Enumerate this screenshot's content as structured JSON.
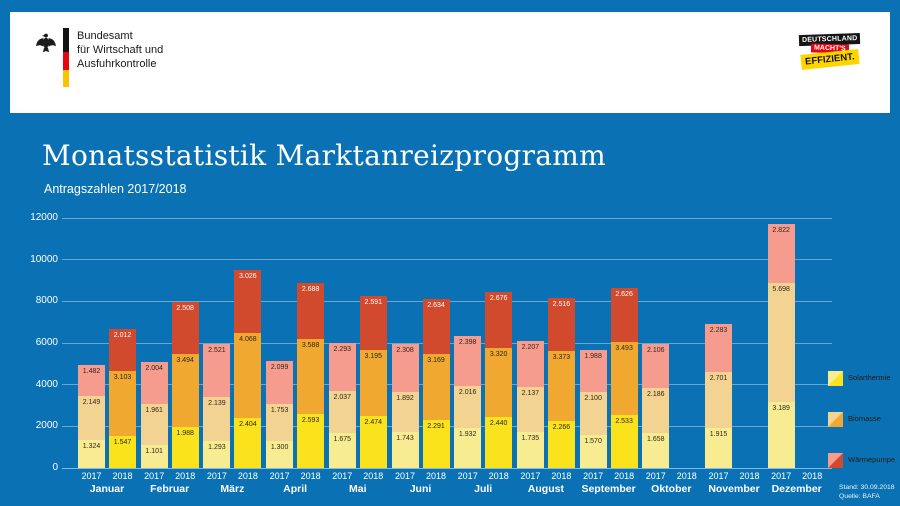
{
  "colors": {
    "background": "#0a72b4",
    "header_background": "#ffffff",
    "flag_black": "#141414",
    "flag_red": "#e30613",
    "flag_gold": "#f6c500",
    "campaign_red": "#e30613",
    "campaign_yellow": "#ffd500"
  },
  "header": {
    "agency": {
      "line1": "Bundesamt",
      "line2": "für Wirtschaft und",
      "line3": "Ausfuhrkontrolle"
    },
    "campaign": {
      "line1": "DEUTSCHLAND",
      "line2": "MACHT'S",
      "line3": "EFFIZIENT."
    }
  },
  "title": "Monatsstatistik Marktanreizprogramm",
  "subtitle": "Antragszahlen 2017/2018",
  "footer": {
    "stand": "Stand: 30.09.2018",
    "quelle": "Quelle: BAFA"
  },
  "chart_data": {
    "type": "bar",
    "stacked": true,
    "title": "Monatsstatistik Marktanreizprogramm",
    "subtitle": "Antragszahlen 2017/2018",
    "grid": true,
    "legend_position": "right",
    "ylim": [
      0,
      12000
    ],
    "yticks": [
      0,
      2000,
      4000,
      6000,
      8000,
      10000,
      12000
    ],
    "series": [
      {
        "key": "solarthermie",
        "name": "Solarthermie",
        "color_2017": "#f7ec92",
        "color_2018": "#fae21d"
      },
      {
        "key": "biomasse",
        "name": "Biomasse",
        "color_2017": "#f3d392",
        "color_2018": "#f0a830"
      },
      {
        "key": "waermepumpe",
        "name": "Wärmepumpe",
        "color_2017": "#f69c8e",
        "color_2018": "#d14a2e"
      }
    ],
    "categories": [
      "Januar",
      "Februar",
      "März",
      "April",
      "Mai",
      "Juni",
      "Juli",
      "August",
      "September",
      "Oktober",
      "November",
      "Dezember"
    ],
    "months": [
      {
        "label": "Januar",
        "bars": [
          {
            "year": "2017",
            "values": [
              1324,
              2149,
              1482
            ]
          },
          {
            "year": "2018",
            "values": [
              1547,
              3103,
              2012
            ]
          }
        ]
      },
      {
        "label": "Februar",
        "bars": [
          {
            "year": "2017",
            "values": [
              1101,
              1961,
              2004
            ]
          },
          {
            "year": "2018",
            "values": [
              1988,
              3494,
              2508
            ]
          }
        ]
      },
      {
        "label": "März",
        "bars": [
          {
            "year": "2017",
            "values": [
              1293,
              2139,
              2521
            ]
          },
          {
            "year": "2018",
            "values": [
              2404,
              4068,
              3026
            ]
          }
        ]
      },
      {
        "label": "April",
        "bars": [
          {
            "year": "2017",
            "values": [
              1300,
              1753,
              2099
            ]
          },
          {
            "year": "2018",
            "values": [
              2593,
              3588,
              2688
            ]
          }
        ]
      },
      {
        "label": "Mai",
        "bars": [
          {
            "year": "2017",
            "values": [
              1675,
              2037,
              2293
            ]
          },
          {
            "year": "2018",
            "values": [
              2474,
              3195,
              2591
            ]
          }
        ]
      },
      {
        "label": "Juni",
        "bars": [
          {
            "year": "2017",
            "values": [
              1743,
              1892,
              2308
            ]
          },
          {
            "year": "2018",
            "values": [
              2291,
              3169,
              2634
            ]
          }
        ]
      },
      {
        "label": "Juli",
        "bars": [
          {
            "year": "2017",
            "values": [
              1932,
              2016,
              2398
            ]
          },
          {
            "year": "2018",
            "values": [
              2440,
              3320,
              2676
            ]
          }
        ]
      },
      {
        "label": "August",
        "bars": [
          {
            "year": "2017",
            "values": [
              1735,
              2137,
              2207
            ]
          },
          {
            "year": "2018",
            "values": [
              2266,
              3373,
              2516
            ]
          }
        ]
      },
      {
        "label": "September",
        "bars": [
          {
            "year": "2017",
            "values": [
              1570,
              2100,
              1988
            ]
          },
          {
            "year": "2018",
            "values": [
              2533,
              3493,
              2626
            ]
          }
        ]
      },
      {
        "label": "Oktober",
        "bars": [
          {
            "year": "2017",
            "values": [
              1658,
              2186,
              2106
            ]
          },
          {
            "year": "2018",
            "values": null
          }
        ]
      },
      {
        "label": "November",
        "bars": [
          {
            "year": "2017",
            "values": [
              1915,
              2701,
              2283
            ]
          },
          {
            "year": "2018",
            "values": null
          }
        ]
      },
      {
        "label": "Dezember",
        "bars": [
          {
            "year": "2017",
            "values": [
              3189,
              5698,
              2822
            ]
          },
          {
            "year": "2018",
            "values": null
          }
        ]
      }
    ]
  }
}
